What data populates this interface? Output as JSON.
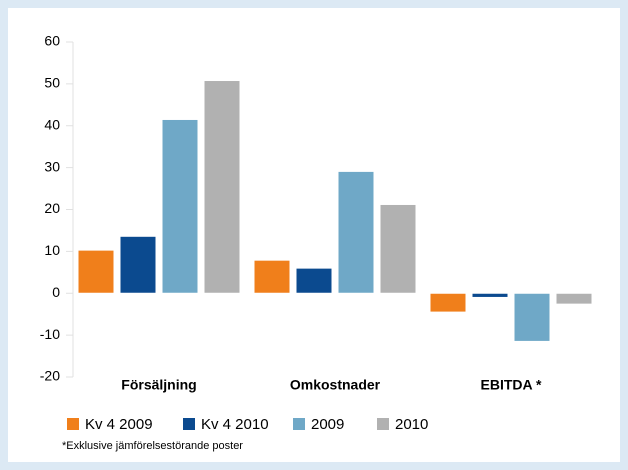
{
  "chart_data": {
    "type": "bar",
    "categories": [
      "Försäljning",
      "Omkostnader",
      "EBITDA *"
    ],
    "series": [
      {
        "name": "Kv 4 2009",
        "color": "#f07f1b",
        "values": [
          10.3,
          7.9,
          -4.5
        ]
      },
      {
        "name": "Kv 4 2010",
        "color": "#0b4a8f",
        "values": [
          13.6,
          6.0,
          -1
        ]
      },
      {
        "name": "2009",
        "color": "#6fa8c7",
        "values": [
          41.5,
          29.1,
          -11.5
        ]
      },
      {
        "name": "2010",
        "color": "#b1b1b1",
        "values": [
          50.8,
          21.2,
          -2.6
        ]
      }
    ],
    "ylim": [
      -20,
      60
    ],
    "yticks": [
      -20,
      -10,
      0,
      10,
      20,
      30,
      40,
      50,
      60
    ],
    "note": "*Exklusive jämförelsestörande poster"
  }
}
